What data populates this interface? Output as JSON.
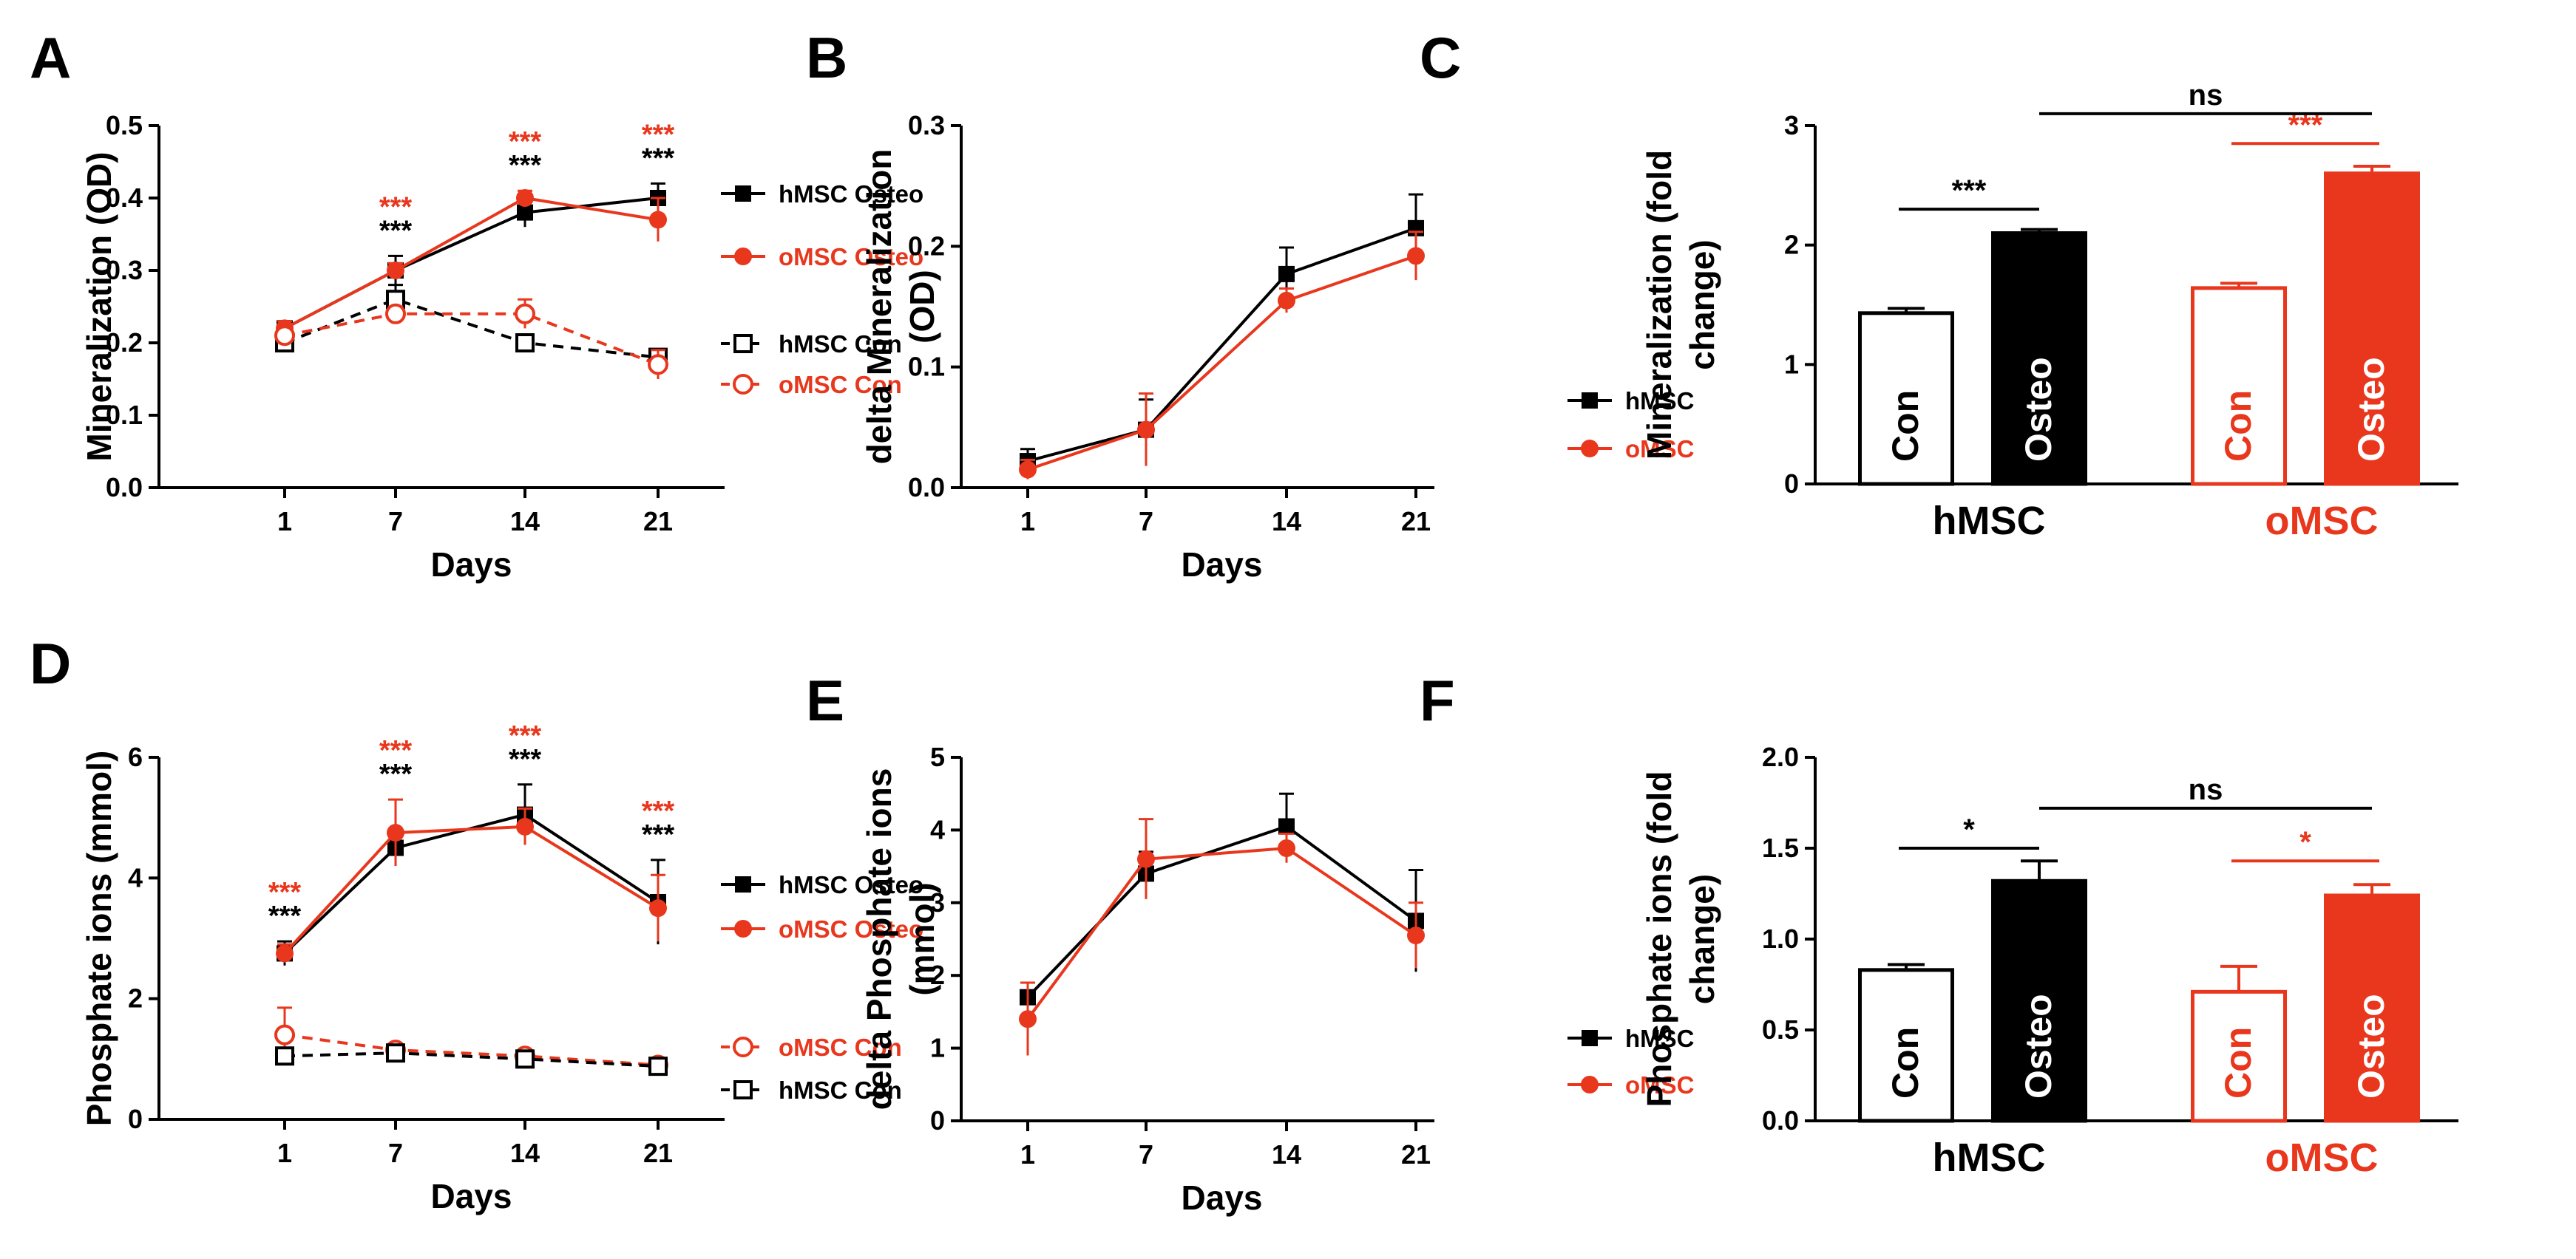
{
  "colors": {
    "black": "#000000",
    "red": "#e8371d",
    "dashed_black": "#1a1a1a"
  },
  "chart_data": [
    {
      "id": "A",
      "type": "line",
      "panel_label": "A",
      "ylabel": "Mineralization (OD)",
      "xlabel": "Days",
      "categories": [
        "1",
        "7",
        "14",
        "21"
      ],
      "ylim": [
        0,
        0.5
      ],
      "yticks": [
        "0.0",
        "0.1",
        "0.2",
        "0.3",
        "0.4",
        "0.5"
      ],
      "series": [
        {
          "name": "hMSC Osteo",
          "color": "black",
          "marker": "square-filled",
          "dashed": false,
          "values": [
            0.22,
            0.3,
            0.38,
            0.4
          ],
          "errors": [
            0.01,
            0.02,
            0.02,
            0.02
          ]
        },
        {
          "name": "oMSC Osteo",
          "color": "red",
          "marker": "circle-filled",
          "dashed": false,
          "values": [
            0.22,
            0.3,
            0.4,
            0.37
          ],
          "errors": [
            0.01,
            0.01,
            0.01,
            0.03
          ]
        },
        {
          "name": "hMSC Con",
          "color": "black",
          "marker": "square-open",
          "dashed": true,
          "values": [
            0.2,
            0.26,
            0.2,
            0.18
          ],
          "errors": [
            0.01,
            0.02,
            0.01,
            0.01
          ]
        },
        {
          "name": "oMSC Con",
          "color": "red",
          "marker": "circle-open",
          "dashed": true,
          "values": [
            0.21,
            0.24,
            0.24,
            0.17
          ],
          "errors": [
            0.01,
            0.01,
            0.02,
            0.02
          ]
        }
      ],
      "annotations": [
        {
          "x_index": 1,
          "red": "***",
          "black": "***"
        },
        {
          "x_index": 2,
          "red": "***",
          "black": "***"
        },
        {
          "x_index": 3,
          "red": "***",
          "black": "***"
        }
      ],
      "legend_groups": [
        [
          "hMSC Osteo",
          "oMSC Osteo"
        ],
        [
          "hMSC Con",
          "oMSC Con"
        ]
      ]
    },
    {
      "id": "B",
      "type": "line",
      "panel_label": "B",
      "ylabel": "delta Mineralization (OD)",
      "xlabel": "Days",
      "categories": [
        "1",
        "7",
        "14",
        "21"
      ],
      "ylim": [
        0,
        0.3
      ],
      "yticks": [
        "0.0",
        "0.1",
        "0.2",
        "0.3"
      ],
      "series": [
        {
          "name": "hMSC",
          "color": "black",
          "marker": "square-filled",
          "dashed": false,
          "values": [
            0.022,
            0.048,
            0.177,
            0.215
          ],
          "errors": [
            0.01,
            0.025,
            0.022,
            0.028
          ]
        },
        {
          "name": "oMSC",
          "color": "red",
          "marker": "circle-filled",
          "dashed": false,
          "values": [
            0.015,
            0.048,
            0.155,
            0.192
          ],
          "errors": [
            0.008,
            0.03,
            0.01,
            0.02
          ]
        }
      ],
      "legend_groups": [
        [
          "hMSC",
          "oMSC"
        ]
      ]
    },
    {
      "id": "C",
      "type": "bar",
      "panel_label": "C",
      "ylabel": "Mineralization (fold change)",
      "ylim": [
        0,
        3
      ],
      "yticks": [
        "0",
        "1",
        "2",
        "3"
      ],
      "bars": [
        {
          "label": "Con",
          "group": "hMSC",
          "color": "black",
          "filled": false,
          "value": 1.43,
          "error": 0.04
        },
        {
          "label": "Osteo",
          "group": "hMSC",
          "color": "black",
          "filled": true,
          "value": 2.1,
          "error": 0.03
        },
        {
          "label": "Con",
          "group": "oMSC",
          "color": "red",
          "filled": false,
          "value": 1.64,
          "error": 0.04
        },
        {
          "label": "Osteo",
          "group": "oMSC",
          "color": "red",
          "filled": true,
          "value": 2.6,
          "error": 0.06
        }
      ],
      "group_labels": [
        {
          "label": "hMSC",
          "color": "black"
        },
        {
          "label": "oMSC",
          "color": "red"
        }
      ],
      "significance": [
        {
          "from": 0,
          "to": 1,
          "label": "***",
          "color": "black",
          "y": 2.3
        },
        {
          "from": 2,
          "to": 3,
          "label": "***",
          "color": "red",
          "y": 2.85
        },
        {
          "from": 1,
          "to": 3,
          "label": "ns",
          "color": "black",
          "y": 3.1
        }
      ]
    },
    {
      "id": "D",
      "type": "line",
      "panel_label": "D",
      "ylabel": "Phosphate ions (mmol)",
      "xlabel": "Days",
      "categories": [
        "1",
        "7",
        "14",
        "21"
      ],
      "ylim": [
        0,
        6
      ],
      "yticks": [
        "0",
        "2",
        "4",
        "6"
      ],
      "series": [
        {
          "name": "hMSC Osteo",
          "color": "black",
          "marker": "square-filled",
          "dashed": false,
          "values": [
            2.75,
            4.5,
            5.05,
            3.6
          ],
          "errors": [
            0.2,
            0.3,
            0.5,
            0.7
          ]
        },
        {
          "name": "oMSC Osteo",
          "color": "red",
          "marker": "circle-filled",
          "dashed": false,
          "values": [
            2.75,
            4.75,
            4.85,
            3.5
          ],
          "errors": [
            0.15,
            0.55,
            0.3,
            0.55
          ]
        },
        {
          "name": "oMSC Con",
          "color": "red",
          "marker": "circle-open",
          "dashed": true,
          "values": [
            1.4,
            1.15,
            1.05,
            0.9
          ],
          "errors": [
            0.45,
            0.08,
            0.06,
            0.06
          ]
        },
        {
          "name": "hMSC Con",
          "color": "black",
          "marker": "square-open",
          "dashed": true,
          "values": [
            1.05,
            1.1,
            1.0,
            0.88
          ],
          "errors": [
            0.05,
            0.05,
            0.05,
            0.05
          ]
        }
      ],
      "annotations": [
        {
          "x_index": 0,
          "red": "***",
          "black": "***"
        },
        {
          "x_index": 1,
          "red": "***",
          "black": "***"
        },
        {
          "x_index": 2,
          "red": "***",
          "black": "***"
        },
        {
          "x_index": 3,
          "red": "***",
          "black": "***"
        }
      ],
      "legend_groups": [
        [
          "hMSC Osteo",
          "oMSC Osteo"
        ],
        [
          "oMSC Con",
          "hMSC Con"
        ]
      ]
    },
    {
      "id": "E",
      "type": "line",
      "panel_label": "E",
      "ylabel": "delta Phosphate ions (mmol)",
      "xlabel": "Days",
      "categories": [
        "1",
        "7",
        "14",
        "21"
      ],
      "ylim": [
        0,
        5
      ],
      "yticks": [
        "0",
        "1",
        "2",
        "3",
        "4",
        "5"
      ],
      "series": [
        {
          "name": "hMSC",
          "color": "black",
          "marker": "square-filled",
          "dashed": false,
          "values": [
            1.7,
            3.4,
            4.05,
            2.75
          ],
          "errors": [
            0.2,
            0.3,
            0.45,
            0.7
          ]
        },
        {
          "name": "oMSC",
          "color": "red",
          "marker": "circle-filled",
          "dashed": false,
          "values": [
            1.4,
            3.6,
            3.75,
            2.55
          ],
          "errors": [
            0.5,
            0.55,
            0.2,
            0.45
          ]
        }
      ],
      "legend_groups": [
        [
          "hMSC",
          "oMSC"
        ]
      ]
    },
    {
      "id": "F",
      "type": "bar",
      "panel_label": "F",
      "ylabel": "Phosphate ions (fold change)",
      "ylim": [
        0,
        2
      ],
      "yticks": [
        "0.0",
        "0.5",
        "1.0",
        "1.5",
        "2.0"
      ],
      "bars": [
        {
          "label": "Con",
          "group": "hMSC",
          "color": "black",
          "filled": false,
          "value": 0.83,
          "error": 0.03
        },
        {
          "label": "Osteo",
          "group": "hMSC",
          "color": "black",
          "filled": true,
          "value": 1.32,
          "error": 0.11
        },
        {
          "label": "Con",
          "group": "oMSC",
          "color": "red",
          "filled": false,
          "value": 0.71,
          "error": 0.14
        },
        {
          "label": "Osteo",
          "group": "oMSC",
          "color": "red",
          "filled": true,
          "value": 1.24,
          "error": 0.06
        }
      ],
      "group_labels": [
        {
          "label": "hMSC",
          "color": "black"
        },
        {
          "label": "oMSC",
          "color": "red"
        }
      ],
      "significance": [
        {
          "from": 0,
          "to": 1,
          "label": "*",
          "color": "black",
          "y": 1.5
        },
        {
          "from": 2,
          "to": 3,
          "label": "*",
          "color": "red",
          "y": 1.43
        },
        {
          "from": 1,
          "to": 3,
          "label": "ns",
          "color": "black",
          "y": 1.72
        }
      ]
    }
  ]
}
